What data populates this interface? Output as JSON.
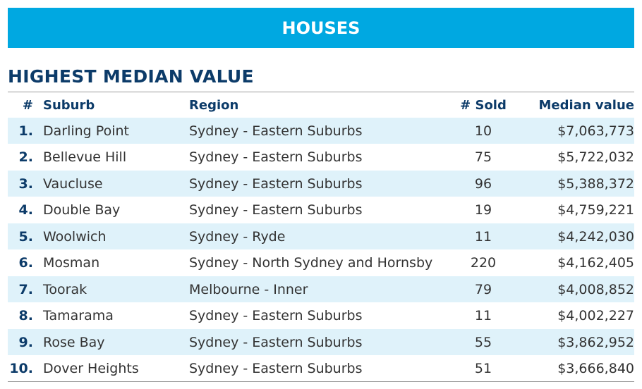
{
  "banner": "HOUSES",
  "table": {
    "title": "HIGHEST MEDIAN VALUE",
    "columns": [
      "#",
      "Suburb",
      "Region",
      "# Sold",
      "Median value"
    ],
    "rows": [
      [
        "1.",
        "Darling Point",
        "Sydney - Eastern Suburbs",
        "10",
        "$7,063,773"
      ],
      [
        "2.",
        "Bellevue Hill",
        "Sydney - Eastern Suburbs",
        "75",
        "$5,722,032"
      ],
      [
        "3.",
        "Vaucluse",
        "Sydney - Eastern Suburbs",
        "96",
        "$5,388,372"
      ],
      [
        "4.",
        "Double Bay",
        "Sydney - Eastern Suburbs",
        "19",
        "$4,759,221"
      ],
      [
        "5.",
        "Woolwich",
        "Sydney - Ryde",
        "11",
        "$4,242,030"
      ],
      [
        "6.",
        "Mosman",
        "Sydney - North Sydney and Hornsby",
        "220",
        "$4,162,405"
      ],
      [
        "7.",
        "Toorak",
        "Melbourne - Inner",
        "79",
        "$4,008,852"
      ],
      [
        "8.",
        "Tamarama",
        "Sydney - Eastern Suburbs",
        "11",
        "$4,002,227"
      ],
      [
        "9.",
        "Rose Bay",
        "Sydney - Eastern Suburbs",
        "55",
        "$3,862,952"
      ],
      [
        "10.",
        "Dover Heights",
        "Sydney - Eastern Suburbs",
        "51",
        "$3,666,840"
      ]
    ]
  }
}
